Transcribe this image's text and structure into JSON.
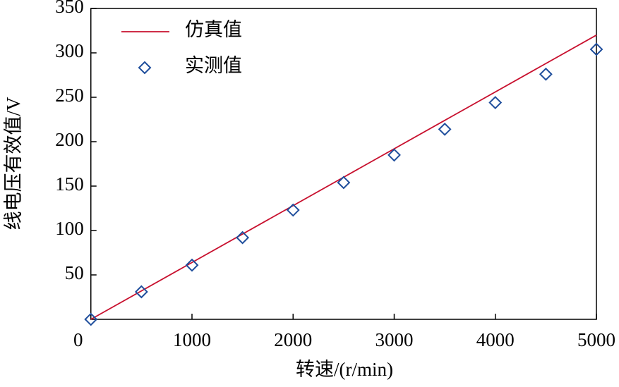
{
  "chart_data": {
    "type": "line",
    "x_label": "转速/(r/min)",
    "y_label": "线电压有效值/V",
    "xlim": [
      0,
      5000
    ],
    "xticks": [
      0,
      1000,
      2000,
      3000,
      4000,
      5000
    ],
    "ylim": [
      0,
      350
    ],
    "yticks": [
      50,
      100,
      150,
      200,
      250,
      300,
      350
    ],
    "legend": "top-left",
    "series": [
      {
        "name": "仿真值",
        "type": "line",
        "color": "#c8102e",
        "x": [
          0,
          5000
        ],
        "values": [
          0,
          320
        ]
      },
      {
        "name": "实测值",
        "type": "scatter",
        "color": "#1f4e9c",
        "x": [
          0,
          500,
          1000,
          1500,
          2000,
          2500,
          3000,
          3500,
          4000,
          4500,
          5000
        ],
        "values": [
          0,
          31,
          61,
          92,
          123,
          154,
          185,
          214,
          244,
          276,
          304
        ]
      }
    ]
  }
}
